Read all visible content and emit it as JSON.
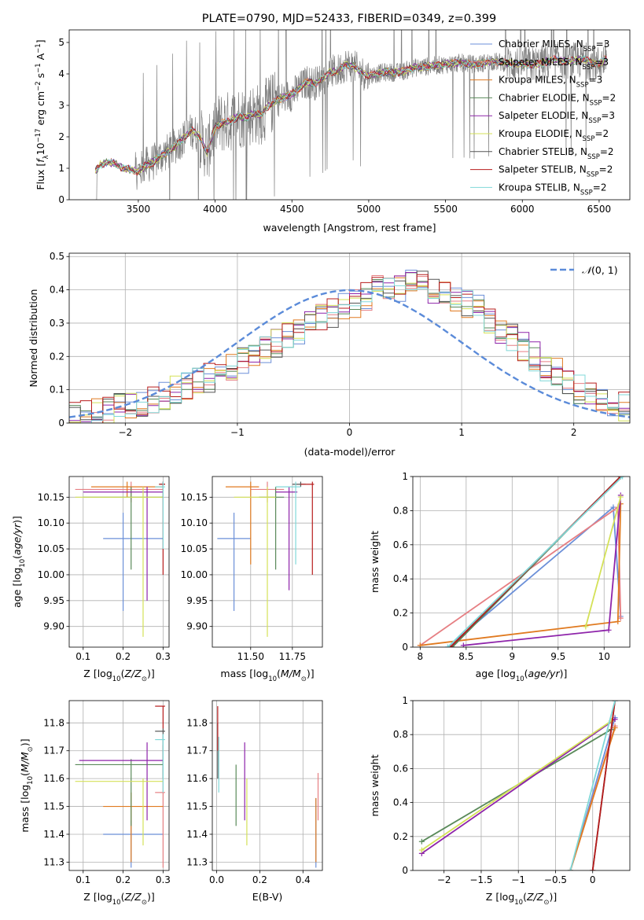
{
  "figure": {
    "title": "PLATE=0790, MJD=52433, FIBERID=0349, z=0.399"
  },
  "colors": {
    "ch_miles": "#6b8fd8",
    "sa_miles": "#e67f83",
    "kr_miles": "#e07a20",
    "ch_elodie": "#5a8a5a",
    "sa_elodie": "#8e24aa",
    "kr_elodie": "#d4e157",
    "ch_stelib": "#555555",
    "sa_stelib": "#b71c1c",
    "kr_stelib": "#80d8d8",
    "data": "#808080",
    "normal": "#5b8bd9"
  },
  "chart_data": [
    {
      "id": "spectrum",
      "type": "line",
      "title": "PLATE=0790, MJD=52433, FIBERID=0349, z=0.399",
      "xlabel": "wavelength [Angstrom, rest frame]",
      "ylabel": "Flux [f_λ 10^-17 erg cm^-2 s^-1 A^-1]",
      "xlim": [
        3050,
        6700
      ],
      "ylim": [
        0,
        5.4
      ],
      "xticks": [
        3500,
        4000,
        4500,
        5000,
        5500,
        6000,
        6500
      ],
      "yticks": [
        0,
        1,
        2,
        3,
        4,
        5
      ],
      "legend_position": "top-right",
      "legend": [
        {
          "label": "Chabrier MILES, N_SSP=3",
          "color_key": "ch_miles"
        },
        {
          "label": "Salpeter MILES, N_SSP=3",
          "color_key": "sa_miles"
        },
        {
          "label": "Kroupa MILES, N_SSP=3",
          "color_key": "kr_miles"
        },
        {
          "label": "Chabrier ELODIE, N_SSP=2",
          "color_key": "ch_elodie"
        },
        {
          "label": "Salpeter ELODIE, N_SSP=3",
          "color_key": "sa_elodie"
        },
        {
          "label": "Kroupa ELODIE, N_SSP=2",
          "color_key": "kr_elodie"
        },
        {
          "label": "Chabrier STELIB, N_SSP=2",
          "color_key": "ch_stelib"
        },
        {
          "label": "Salpeter STELIB, N_SSP=2",
          "color_key": "sa_stelib"
        },
        {
          "label": "Kroupa STELIB, N_SSP=2",
          "color_key": "kr_stelib"
        }
      ],
      "model_continuum": {
        "x": [
          3220,
          3250,
          3300,
          3350,
          3400,
          3450,
          3500,
          3550,
          3600,
          3650,
          3700,
          3750,
          3800,
          3850,
          3900,
          3950,
          4000,
          4050,
          4100,
          4150,
          4200,
          4250,
          4300,
          4350,
          4400,
          4450,
          4500,
          4550,
          4600,
          4650,
          4700,
          4750,
          4800,
          4850,
          4900,
          4950,
          5000,
          5100,
          5200,
          5300,
          5400,
          5500,
          5600,
          5700,
          5800,
          5900,
          6000,
          6100,
          6200,
          6300,
          6400,
          6500,
          6550
        ],
        "y": [
          0.9,
          1.1,
          1.2,
          1.15,
          1.0,
          0.95,
          0.9,
          1.1,
          1.2,
          1.4,
          1.55,
          1.75,
          2.0,
          2.2,
          2.0,
          1.5,
          2.35,
          2.45,
          2.5,
          2.65,
          2.6,
          2.75,
          2.7,
          3.0,
          3.15,
          3.25,
          3.35,
          3.55,
          3.75,
          3.7,
          3.85,
          4.05,
          4.1,
          4.3,
          4.25,
          4.05,
          3.95,
          4.05,
          4.05,
          4.2,
          4.25,
          4.3,
          4.35,
          4.3,
          4.4,
          4.35,
          4.3,
          4.3,
          4.45,
          4.4,
          4.45,
          4.3,
          4.55
        ]
      }
    },
    {
      "id": "residuals",
      "type": "line",
      "xlabel": "(data-model)/error",
      "ylabel": "Normed distribution",
      "xlim": [
        -2.5,
        2.5
      ],
      "ylim": [
        0,
        0.51
      ],
      "xticks": [
        -2,
        -1,
        0,
        1,
        2
      ],
      "yticks": [
        0.0,
        0.1,
        0.2,
        0.3,
        0.4,
        0.5
      ],
      "legend_position": "top-right",
      "legend": [
        {
          "label": "N(0,1)",
          "style": "dashed"
        }
      ],
      "histogram_envelope": {
        "bin_width": 0.1,
        "x_start": -2.5,
        "y": [
          0.02,
          0.025,
          0.03,
          0.035,
          0.045,
          0.05,
          0.06,
          0.07,
          0.085,
          0.1,
          0.11,
          0.125,
          0.135,
          0.15,
          0.17,
          0.19,
          0.2,
          0.22,
          0.24,
          0.26,
          0.28,
          0.3,
          0.32,
          0.33,
          0.35,
          0.36,
          0.38,
          0.4,
          0.41,
          0.41,
          0.43,
          0.42,
          0.4,
          0.39,
          0.38,
          0.36,
          0.34,
          0.31,
          0.28,
          0.26,
          0.23,
          0.2,
          0.17,
          0.15,
          0.13,
          0.1,
          0.09,
          0.07,
          0.06,
          0.05
        ]
      }
    },
    {
      "id": "age_vs_Z",
      "type": "scatter",
      "xlabel": "Z [log10(Z/Z⊙)]",
      "ylabel": "age [log10(age/yr)]",
      "xlim": [
        0.065,
        0.315
      ],
      "ylim": [
        9.86,
        10.19
      ],
      "xticks": [
        0.1,
        0.2,
        0.3
      ],
      "yticks": [
        9.9,
        9.95,
        10.0,
        10.05,
        10.1,
        10.15
      ],
      "points": [
        {
          "color_key": "ch_miles",
          "x": 0.2,
          "y": 10.07,
          "xerr": [
            0.15,
            0.3
          ],
          "yerr": [
            9.93,
            10.12
          ]
        },
        {
          "color_key": "sa_miles",
          "x": 0.22,
          "y": 10.165,
          "xerr": [
            0.08,
            0.3
          ],
          "yerr": [
            10.14,
            10.18
          ]
        },
        {
          "color_key": "kr_miles",
          "x": 0.21,
          "y": 10.17,
          "xerr": [
            0.12,
            0.3
          ],
          "yerr": [
            10.15,
            10.18
          ]
        },
        {
          "color_key": "ch_elodie",
          "x": 0.22,
          "y": 10.15,
          "xerr": [
            0.1,
            0.3
          ],
          "yerr": [
            10.01,
            10.17
          ]
        },
        {
          "color_key": "sa_elodie",
          "x": 0.26,
          "y": 10.16,
          "xerr": [
            0.1,
            0.3
          ],
          "yerr": [
            9.95,
            10.17
          ]
        },
        {
          "color_key": "kr_elodie",
          "x": 0.25,
          "y": 10.15,
          "xerr": [
            0.08,
            0.3
          ],
          "yerr": [
            9.88,
            10.17
          ]
        },
        {
          "color_key": "ch_stelib",
          "x": 0.3,
          "y": 10.175,
          "xerr": [
            0.29,
            0.305
          ],
          "yerr": [
            10.17,
            10.18
          ]
        },
        {
          "color_key": "sa_stelib",
          "x": 0.3,
          "y": 10.175,
          "xerr": [
            0.29,
            0.305
          ],
          "yerr": [
            10.0,
            10.18
          ]
        },
        {
          "color_key": "kr_stelib",
          "x": 0.3,
          "y": 10.17,
          "xerr": [
            0.28,
            0.305
          ],
          "yerr": [
            10.05,
            10.18
          ]
        }
      ]
    },
    {
      "id": "age_vs_mass",
      "type": "scatter",
      "xlabel": "mass [log10(M/M⊙)]",
      "ylabel": "",
      "xlim": [
        11.27,
        11.93
      ],
      "ylim": [
        9.86,
        10.19
      ],
      "xticks": [
        11.5,
        11.75
      ],
      "yticks": [
        9.9,
        9.95,
        10.0,
        10.05,
        10.1,
        10.15
      ],
      "points": [
        {
          "color_key": "ch_miles",
          "x": 11.4,
          "y": 10.07,
          "xerr": [
            11.3,
            11.5
          ],
          "yerr": [
            9.93,
            10.12
          ]
        },
        {
          "color_key": "sa_miles",
          "x": 11.6,
          "y": 10.165,
          "xerr": [
            11.5,
            11.7
          ],
          "yerr": [
            10.14,
            10.18
          ]
        },
        {
          "color_key": "kr_miles",
          "x": 11.5,
          "y": 10.17,
          "xerr": [
            11.35,
            11.55
          ],
          "yerr": [
            10.02,
            10.18
          ]
        },
        {
          "color_key": "ch_elodie",
          "x": 11.65,
          "y": 10.15,
          "xerr": [
            11.55,
            11.7
          ],
          "yerr": [
            10.01,
            10.17
          ]
        },
        {
          "color_key": "sa_elodie",
          "x": 11.73,
          "y": 10.16,
          "xerr": [
            11.65,
            11.78
          ],
          "yerr": [
            9.97,
            10.17
          ]
        },
        {
          "color_key": "kr_elodie",
          "x": 11.6,
          "y": 10.15,
          "xerr": [
            11.4,
            11.65
          ],
          "yerr": [
            9.88,
            10.17
          ]
        },
        {
          "color_key": "ch_stelib",
          "x": 11.8,
          "y": 10.175,
          "xerr": [
            11.75,
            11.83
          ],
          "yerr": [
            10.17,
            10.18
          ]
        },
        {
          "color_key": "sa_stelib",
          "x": 11.87,
          "y": 10.175,
          "xerr": [
            11.8,
            11.88
          ],
          "yerr": [
            10.0,
            10.18
          ]
        },
        {
          "color_key": "kr_stelib",
          "x": 11.77,
          "y": 10.17,
          "xerr": [
            11.65,
            11.8
          ],
          "yerr": [
            10.02,
            10.18
          ]
        }
      ]
    },
    {
      "id": "weight_vs_age",
      "type": "line",
      "xlabel": "age [log10(age/yr)]",
      "ylabel": "mass weight",
      "xlim": [
        7.92,
        10.28
      ],
      "ylim": [
        0,
        1.0
      ],
      "xticks": [
        8.0,
        8.5,
        9.0,
        9.5,
        10.0
      ],
      "yticks": [
        0.0,
        0.2,
        0.4,
        0.6,
        0.8,
        1.0
      ],
      "series": [
        {
          "color_key": "ch_miles",
          "x": [
            8.3,
            10.1,
            10.18
          ],
          "y": [
            0.0,
            0.82,
            0.18
          ]
        },
        {
          "color_key": "sa_miles",
          "x": [
            8.0,
            10.15,
            10.18
          ],
          "y": [
            0.01,
            0.82,
            0.17
          ]
        },
        {
          "color_key": "kr_miles",
          "x": [
            8.0,
            10.15,
            10.18
          ],
          "y": [
            0.01,
            0.15,
            0.84
          ]
        },
        {
          "color_key": "ch_elodie",
          "x": [
            8.35,
            10.18
          ],
          "y": [
            0.0,
            1.0
          ]
        },
        {
          "color_key": "sa_elodie",
          "x": [
            8.47,
            10.05,
            10.18
          ],
          "y": [
            0.01,
            0.1,
            0.89
          ]
        },
        {
          "color_key": "kr_elodie",
          "x": [
            9.8,
            10.18
          ],
          "y": [
            0.12,
            0.88
          ]
        },
        {
          "color_key": "ch_stelib",
          "x": [
            8.33,
            10.18
          ],
          "y": [
            0.0,
            1.0
          ]
        },
        {
          "color_key": "sa_stelib",
          "x": [
            8.33,
            10.18
          ],
          "y": [
            0.0,
            1.0
          ]
        },
        {
          "color_key": "kr_stelib",
          "x": [
            8.3,
            10.2
          ],
          "y": [
            0.0,
            1.0
          ]
        }
      ]
    },
    {
      "id": "mass_vs_Z",
      "type": "scatter",
      "xlabel": "Z [log10(Z/Z⊙)]",
      "ylabel": "mass [log10(M/M⊙)]",
      "xlim": [
        0.065,
        0.315
      ],
      "ylim": [
        11.27,
        11.88
      ],
      "xticks": [
        0.1,
        0.2,
        0.3
      ],
      "yticks": [
        11.3,
        11.4,
        11.5,
        11.6,
        11.7,
        11.8
      ],
      "points": [
        {
          "color_key": "ch_miles",
          "x": 0.22,
          "y": 11.4,
          "xerr": [
            0.15,
            0.3
          ],
          "yerr": [
            11.28,
            11.45
          ]
        },
        {
          "color_key": "sa_miles",
          "x": 0.3,
          "y": 11.55,
          "xerr": [
            0.28,
            0.305
          ],
          "yerr": [
            11.28,
            11.72
          ]
        },
        {
          "color_key": "kr_miles",
          "x": 0.22,
          "y": 11.5,
          "xerr": [
            0.15,
            0.3
          ],
          "yerr": [
            11.3,
            11.55
          ]
        },
        {
          "color_key": "ch_elodie",
          "x": 0.22,
          "y": 11.65,
          "xerr": [
            0.08,
            0.3
          ],
          "yerr": [
            11.43,
            11.67
          ]
        },
        {
          "color_key": "sa_elodie",
          "x": 0.26,
          "y": 11.665,
          "xerr": [
            0.09,
            0.3
          ],
          "yerr": [
            11.45,
            11.73
          ]
        },
        {
          "color_key": "kr_elodie",
          "x": 0.25,
          "y": 11.59,
          "xerr": [
            0.08,
            0.3
          ],
          "yerr": [
            11.36,
            11.6
          ]
        },
        {
          "color_key": "ch_stelib",
          "x": 0.3,
          "y": 11.77,
          "xerr": [
            0.28,
            0.305
          ],
          "yerr": [
            11.6,
            11.78
          ]
        },
        {
          "color_key": "sa_stelib",
          "x": 0.3,
          "y": 11.86,
          "xerr": [
            0.28,
            0.305
          ],
          "yerr": [
            11.78,
            11.86
          ]
        },
        {
          "color_key": "kr_stelib",
          "x": 0.3,
          "y": 11.74,
          "xerr": [
            0.28,
            0.305
          ],
          "yerr": [
            11.55,
            11.76
          ]
        }
      ]
    },
    {
      "id": "mass_vs_ebv",
      "type": "scatter",
      "xlabel": "E(B-V)",
      "ylabel": "",
      "xlim": [
        -0.02,
        0.49
      ],
      "ylim": [
        11.27,
        11.88
      ],
      "xticks": [
        0.0,
        0.2,
        0.4
      ],
      "yticks": [
        11.3,
        11.4,
        11.5,
        11.6,
        11.7,
        11.8
      ],
      "points": [
        {
          "color_key": "ch_miles",
          "x": 0.46,
          "y": 11.4,
          "yerr": [
            11.28,
            11.53
          ]
        },
        {
          "color_key": "sa_miles",
          "x": 0.47,
          "y": 11.55,
          "yerr": [
            11.45,
            11.62
          ]
        },
        {
          "color_key": "kr_miles",
          "x": 0.46,
          "y": 11.5,
          "yerr": [
            11.3,
            11.53
          ]
        },
        {
          "color_key": "ch_elodie",
          "x": 0.09,
          "y": 11.55,
          "yerr": [
            11.43,
            11.65
          ]
        },
        {
          "color_key": "sa_elodie",
          "x": 0.13,
          "y": 11.6,
          "yerr": [
            11.45,
            11.73
          ]
        },
        {
          "color_key": "kr_elodie",
          "x": 0.14,
          "y": 11.5,
          "yerr": [
            11.36,
            11.6
          ]
        },
        {
          "color_key": "ch_stelib",
          "x": 0.005,
          "y": 11.7,
          "yerr": [
            11.6,
            11.8
          ]
        },
        {
          "color_key": "sa_stelib",
          "x": 0.005,
          "y": 11.8,
          "yerr": [
            11.7,
            11.86
          ]
        },
        {
          "color_key": "kr_stelib",
          "x": 0.01,
          "y": 11.65,
          "yerr": [
            11.55,
            11.75
          ]
        }
      ]
    },
    {
      "id": "weight_vs_Z",
      "type": "line",
      "xlabel": "Z [log10(Z/Z⊙)]",
      "ylabel": "mass weight",
      "xlim": [
        -2.42,
        0.5
      ],
      "ylim": [
        0,
        1.0
      ],
      "xticks": [
        -2.0,
        -1.5,
        -1.0,
        -0.5,
        0.0
      ],
      "yticks": [
        0.0,
        0.2,
        0.4,
        0.6,
        0.8,
        1.0
      ],
      "series": [
        {
          "color_key": "ch_miles",
          "x": [
            -0.3,
            0.3
          ],
          "y": [
            0.0,
            0.9
          ]
        },
        {
          "color_key": "sa_miles",
          "x": [
            -0.3,
            0.3
          ],
          "y": [
            0.0,
            0.85
          ]
        },
        {
          "color_key": "kr_miles",
          "x": [
            -0.3,
            0.3
          ],
          "y": [
            0.0,
            0.84
          ]
        },
        {
          "color_key": "ch_elodie",
          "x": [
            -2.3,
            0.25
          ],
          "y": [
            0.17,
            0.83
          ]
        },
        {
          "color_key": "sa_elodie",
          "x": [
            -2.3,
            0.3
          ],
          "y": [
            0.1,
            0.89
          ]
        },
        {
          "color_key": "kr_elodie",
          "x": [
            -2.3,
            0.25
          ],
          "y": [
            0.12,
            0.88
          ]
        },
        {
          "color_key": "ch_stelib",
          "x": [
            0.0,
            0.3
          ],
          "y": [
            0.0,
            1.0
          ]
        },
        {
          "color_key": "sa_stelib",
          "x": [
            0.0,
            0.3
          ],
          "y": [
            0.0,
            1.0
          ]
        },
        {
          "color_key": "kr_stelib",
          "x": [
            -0.3,
            0.3
          ],
          "y": [
            0.0,
            1.0
          ]
        }
      ]
    }
  ]
}
